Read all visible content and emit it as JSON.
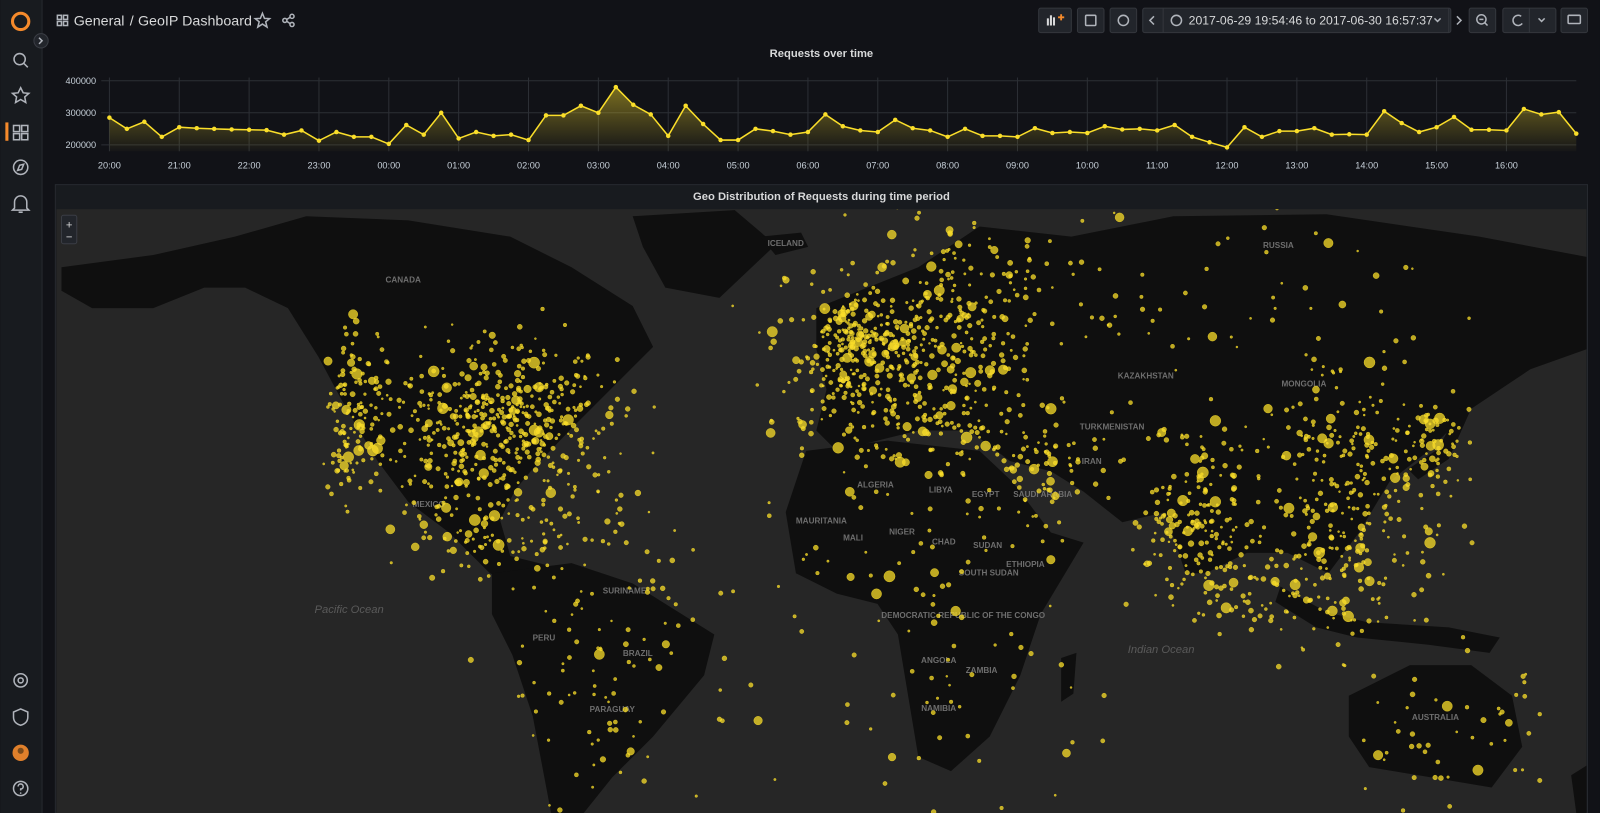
{
  "header": {
    "folder": "General",
    "separator": "/",
    "title": "GeoIP Dashboard",
    "time_range": "2017-06-29 19:54:46 to 2017-06-30 16:57:37"
  },
  "chart_data": {
    "type": "line",
    "title": "Requests over time",
    "categories": [
      "20:00",
      null,
      null,
      null,
      "21:00",
      null,
      null,
      null,
      "22:00",
      null,
      null,
      null,
      "23:00",
      null,
      null,
      null,
      "00:00",
      null,
      null,
      null,
      "01:00",
      null,
      null,
      null,
      "02:00",
      null,
      null,
      null,
      "03:00",
      null,
      null,
      null,
      "04:00",
      null,
      null,
      null,
      "05:00",
      null,
      null,
      null,
      "06:00",
      null,
      null,
      null,
      "07:00",
      null,
      null,
      null,
      "08:00",
      null,
      null,
      null,
      "09:00",
      null,
      null,
      null,
      "10:00",
      null,
      null,
      null,
      "11:00",
      null,
      null,
      null,
      "12:00",
      null,
      null,
      null,
      "13:00",
      null,
      null,
      null,
      "14:00",
      null,
      null,
      null,
      "15:00",
      null,
      null,
      null,
      "16:00",
      null,
      null,
      null,
      null
    ],
    "values": [
      285000,
      250000,
      272000,
      225000,
      255000,
      252000,
      250000,
      248000,
      247000,
      246000,
      232000,
      245000,
      213000,
      240000,
      225000,
      225000,
      203000,
      262000,
      232000,
      300000,
      220000,
      240000,
      228000,
      232000,
      215000,
      292000,
      292000,
      322000,
      300000,
      380000,
      325000,
      295000,
      228000,
      322000,
      265000,
      215000,
      215000,
      250000,
      243000,
      232000,
      240000,
      295000,
      258000,
      245000,
      240000,
      278000,
      252000,
      245000,
      225000,
      250000,
      228000,
      228000,
      225000,
      252000,
      237000,
      240000,
      237000,
      258000,
      248000,
      250000,
      245000,
      262000,
      225000,
      208000,
      192000,
      255000,
      225000,
      243000,
      243000,
      252000,
      232000,
      233000,
      232000,
      305000,
      268000,
      240000,
      255000,
      287000,
      247000,
      247000,
      245000,
      312000,
      295000,
      302000,
      235000
    ],
    "color": "#fade2a",
    "ylim": [
      180000,
      410000
    ],
    "yticks": [
      200000,
      300000,
      400000
    ],
    "grid": true
  },
  "map": {
    "title": "Geo Distribution of Requests during time period",
    "zoom_in": "+",
    "zoom_out": "−",
    "labels": [
      "CANADA",
      "ICELAND",
      "RUSSIA",
      "KAZAKHSTAN",
      "MONGOLIA",
      "TURKMENISTAN",
      "IRAN",
      "ALGERIA",
      "LIBYA",
      "EGYPT",
      "MAURITANIA",
      "MALI",
      "NIGER",
      "CHAD",
      "SUDAN",
      "SOUTH SUDAN",
      "ETHIOPIA",
      "SAUDI ARABIA",
      "DEMOCRATIC REPUBLIC OF THE CONGO",
      "ANGOLA",
      "ZAMBIA",
      "NAMIBIA",
      "MEXICO",
      "SURINAME",
      "PERU",
      "BRAZIL",
      "PARAGUAY",
      "AUSTRALIA",
      "Pacific Ocean",
      "Indian Ocean"
    ]
  }
}
